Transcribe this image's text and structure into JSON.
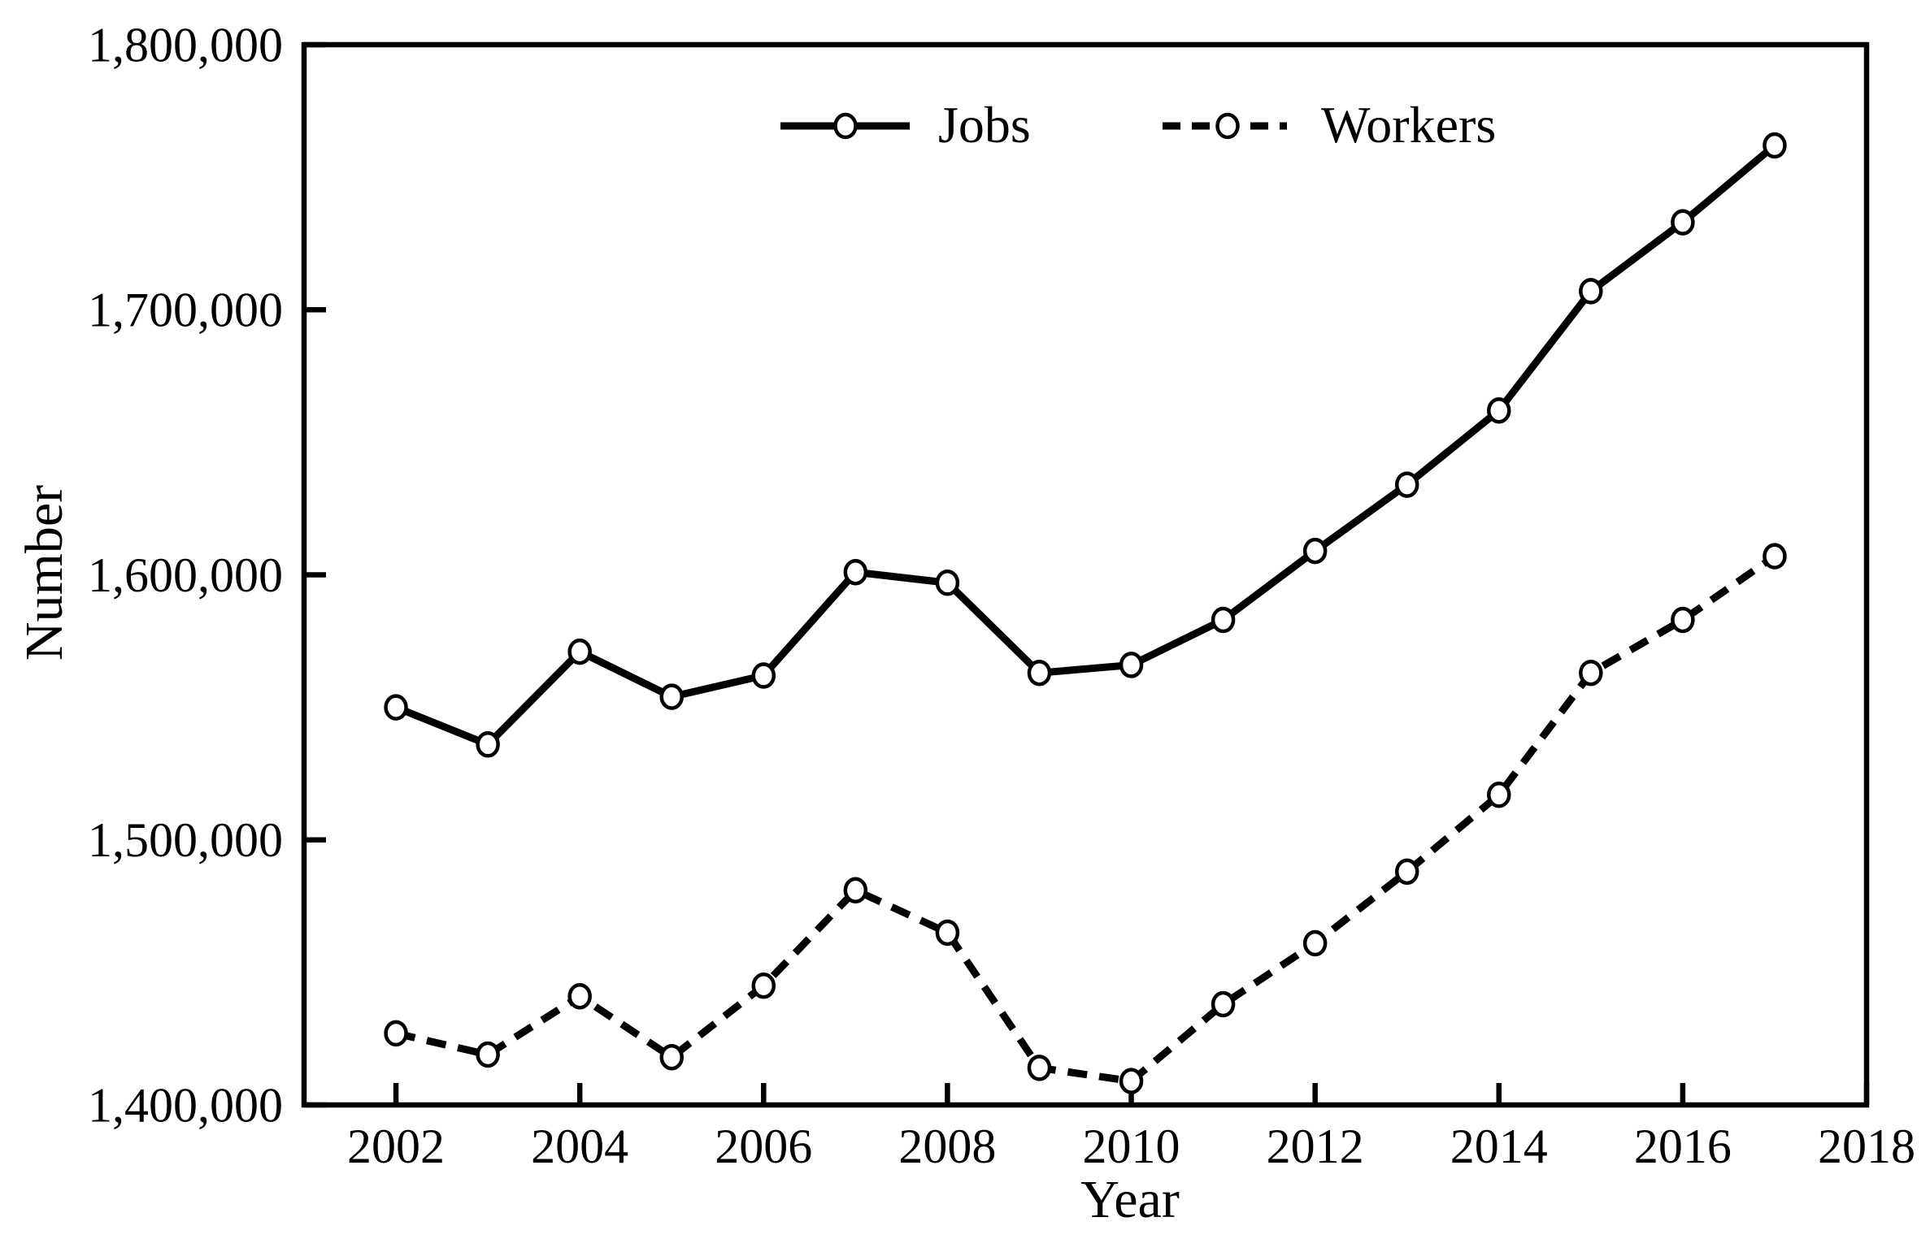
{
  "page": {
    "background": "#ffffff"
  },
  "chart_data": {
    "type": "line",
    "title": "",
    "xlabel": "Year",
    "ylabel": "Number",
    "x": [
      2002,
      2003,
      2004,
      2005,
      2006,
      2007,
      2008,
      2009,
      2010,
      2011,
      2012,
      2013,
      2014,
      2015,
      2016,
      2017
    ],
    "series": [
      {
        "name": "Jobs",
        "line_style": "solid",
        "marker": "open-circle",
        "values": [
          1550000,
          1536000,
          1571000,
          1554000,
          1562000,
          1601000,
          1597000,
          1563000,
          1566000,
          1583000,
          1609000,
          1634000,
          1662000,
          1707000,
          1733000,
          1762000
        ]
      },
      {
        "name": "Workers",
        "line_style": "dashed",
        "marker": "open-circle",
        "values": [
          1427000,
          1419000,
          1441000,
          1418000,
          1445000,
          1481000,
          1465000,
          1414000,
          1409000,
          1438000,
          1461000,
          1488000,
          1517000,
          1563000,
          1583000,
          1607000
        ]
      }
    ],
    "xlim": [
      2001,
      2018
    ],
    "ylim": [
      1400000,
      1800000
    ],
    "x_ticks": [
      2002,
      2004,
      2006,
      2008,
      2010,
      2012,
      2014,
      2016,
      2018
    ],
    "x_tick_labels": [
      "2002",
      "2004",
      "2006",
      "2008",
      "2010",
      "2012",
      "2014",
      "2016",
      "2018"
    ],
    "y_ticks": [
      1400000,
      1500000,
      1600000,
      1700000,
      1800000
    ],
    "y_tick_labels": [
      "1,400,000",
      "1,500,000",
      "1,600,000",
      "1,700,000",
      "1,800,000"
    ],
    "grid": false,
    "legend_position": "top-center",
    "colors": {
      "line": "#000000",
      "marker_fill": "#ffffff",
      "text": "#000000",
      "background": "#ffffff"
    }
  }
}
